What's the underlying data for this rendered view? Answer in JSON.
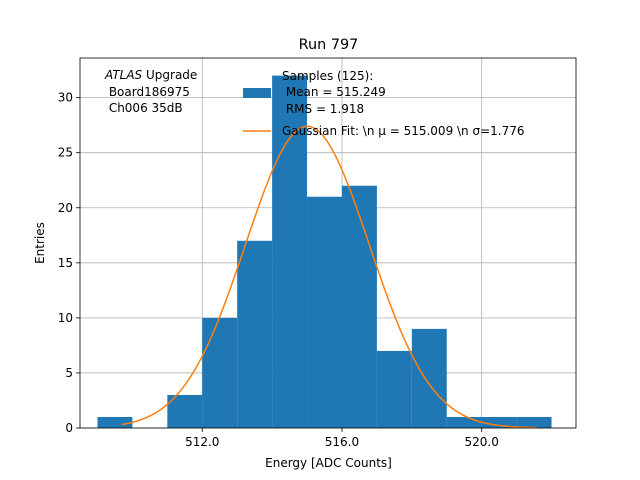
{
  "chart_data": {
    "type": "bar",
    "title": "Run 797",
    "xlabel": "Energy [ADC Counts]",
    "ylabel": "Entries",
    "xlim": [
      508.5,
      522.7
    ],
    "ylim": [
      0,
      33.6
    ],
    "x_ticks": [
      512,
      516,
      520
    ],
    "x_tick_labels": [
      "512.0",
      "516.0",
      "520.0"
    ],
    "y_ticks": [
      0,
      5,
      10,
      15,
      20,
      25,
      30
    ],
    "grid": true,
    "bin_edges": [
      509,
      510,
      511,
      512,
      513,
      514,
      515,
      516,
      517,
      518,
      519,
      520,
      521,
      522
    ],
    "counts": [
      1,
      0,
      3,
      10,
      17,
      32,
      21,
      22,
      7,
      9,
      1,
      1,
      1
    ],
    "colors": {
      "histogram": "#1f77b4",
      "fit": "#ff7f0e",
      "grid": "#b0b0b0"
    },
    "fit": {
      "mu": 515.009,
      "sigma": 1.776,
      "amplitude": 27.4,
      "x_range": [
        509.7,
        521.6
      ]
    },
    "annotation": {
      "line1_italic": "ATLAS",
      "line1_rest": " Upgrade",
      "line2": " Board186975",
      "line3": " Ch006 35dB"
    },
    "legend": {
      "placement": "top-right",
      "samples_lines": [
        "Samples (125):",
        " Mean = 515.249",
        " RMS = 1.918"
      ],
      "fit_label": "Gaussian Fit: \\n μ = 515.009 \\n σ=1.776"
    }
  }
}
